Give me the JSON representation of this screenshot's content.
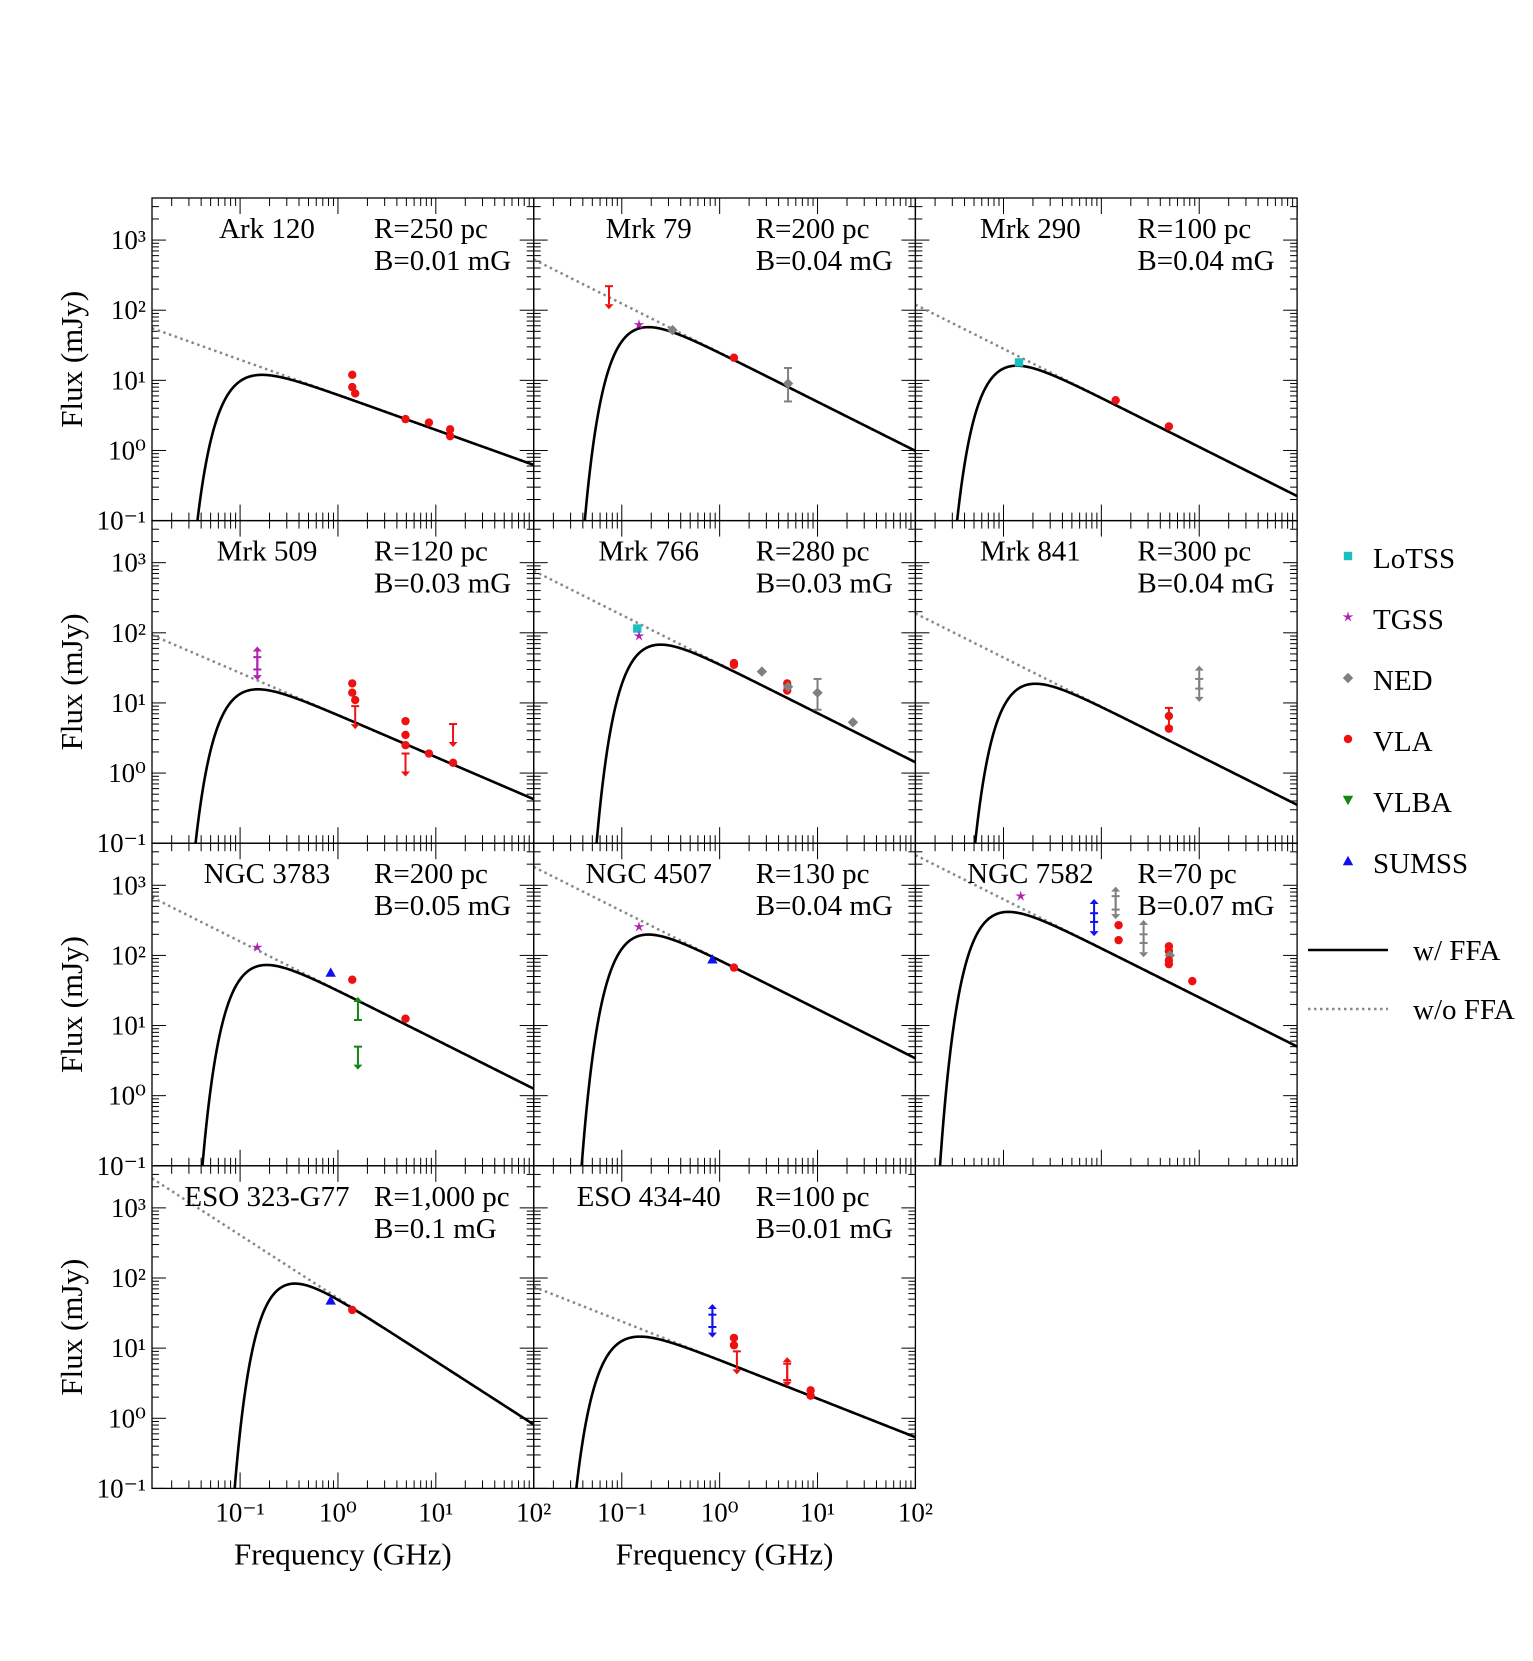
{
  "figure": {
    "xlabel": "Frequency (GHz)",
    "ylabel": "Flux (mJy)",
    "xlim_log10": [
      -1.9,
      2
    ],
    "ylim_log10": [
      -1,
      3.6
    ],
    "x_tick_labels": [
      "10⁻¹",
      "10⁰",
      "10¹",
      "10²"
    ],
    "x_tick_exponents": [
      -1,
      0,
      1,
      2
    ],
    "y_tick_labels": [
      "10⁻¹",
      "10⁰",
      "10¹",
      "10²",
      "10³"
    ],
    "y_tick_exponents": [
      -1,
      0,
      1,
      2,
      3
    ]
  },
  "legend": {
    "entries": [
      {
        "key": "lotss",
        "label": "LoTSS",
        "color": "#1ABFBF",
        "marker": "square"
      },
      {
        "key": "tgss",
        "label": "TGSS",
        "color": "#B020B0",
        "marker": "star"
      },
      {
        "key": "ned",
        "label": "NED",
        "color": "#808080",
        "marker": "diamond"
      },
      {
        "key": "vla",
        "label": "VLA",
        "color": "#EE1111",
        "marker": "circle"
      },
      {
        "key": "vlba",
        "label": "VLBA",
        "color": "#118811",
        "marker": "triangle-down"
      },
      {
        "key": "sumss",
        "label": "SUMSS",
        "color": "#1111EE",
        "marker": "triangle-up"
      }
    ],
    "lines": [
      {
        "key": "ffa",
        "label": "w/ FFA",
        "style": "solid",
        "color": "#000000"
      },
      {
        "key": "noffa",
        "label": "w/o FFA",
        "style": "dotted",
        "color": "#888888"
      }
    ]
  },
  "chart_data": [
    {
      "type": "line",
      "name": "Ark 120",
      "r_label": "R=250 pc",
      "b_label": "B=0.01 mG",
      "model": {
        "peak_ghz": 0.13,
        "peak_mjy": 11.5,
        "alpha": -0.5
      },
      "points": [
        {
          "src": "vla",
          "f": 1.4,
          "y": 12
        },
        {
          "src": "vla",
          "f": 1.4,
          "y": 8
        },
        {
          "src": "vla",
          "f": 1.5,
          "y": 6.5
        },
        {
          "src": "vla",
          "f": 4.9,
          "y": 2.8
        },
        {
          "src": "vla",
          "f": 8.5,
          "y": 2.5
        },
        {
          "src": "vla",
          "f": 14,
          "y": 2.0
        },
        {
          "src": "vla",
          "f": 14,
          "y": 1.6
        }
      ]
    },
    {
      "type": "line",
      "name": "Mrk 79",
      "r_label": "R=200 pc",
      "b_label": "B=0.04 mG",
      "model": {
        "peak_ghz": 0.15,
        "peak_mjy": 55,
        "alpha": -0.7
      },
      "points": [
        {
          "src": "vla",
          "f": 0.074,
          "y": 220,
          "limit": "upper"
        },
        {
          "src": "tgss",
          "f": 0.15,
          "y": 62
        },
        {
          "src": "ned",
          "f": 0.33,
          "y": 52
        },
        {
          "src": "vla",
          "f": 1.4,
          "y": 21
        },
        {
          "src": "ned",
          "f": 5,
          "y": 9,
          "err": [
            5,
            15
          ]
        }
      ]
    },
    {
      "type": "line",
      "name": "Mrk 290",
      "r_label": "R=100 pc",
      "b_label": "B=0.04 mG",
      "model": {
        "peak_ghz": 0.11,
        "peak_mjy": 15.5,
        "alpha": -0.7
      },
      "points": [
        {
          "src": "lotss",
          "f": 0.144,
          "y": 18
        },
        {
          "src": "vla",
          "f": 1.4,
          "y": 5.2
        },
        {
          "src": "vla",
          "f": 4.9,
          "y": 2.2
        }
      ]
    },
    {
      "type": "line",
      "name": "Mrk 509",
      "r_label": "R=120 pc",
      "b_label": "B=0.03 mG",
      "model": {
        "peak_ghz": 0.12,
        "peak_mjy": 15,
        "alpha": -0.6
      },
      "points": [
        {
          "src": "tgss",
          "f": 0.15,
          "y": 45,
          "limit": "upper"
        },
        {
          "src": "tgss",
          "f": 0.15,
          "y": 30,
          "limit": "lower"
        },
        {
          "src": "vla",
          "f": 1.4,
          "y": 19
        },
        {
          "src": "vla",
          "f": 1.4,
          "y": 14
        },
        {
          "src": "vla",
          "f": 1.5,
          "y": 11
        },
        {
          "src": "vla",
          "f": 1.5,
          "y": 9,
          "limit": "upper"
        },
        {
          "src": "vla",
          "f": 4.9,
          "y": 5.5
        },
        {
          "src": "vla",
          "f": 4.9,
          "y": 3.5
        },
        {
          "src": "vla",
          "f": 4.9,
          "y": 2.5
        },
        {
          "src": "vla",
          "f": 4.9,
          "y": 1.9,
          "limit": "upper"
        },
        {
          "src": "vla",
          "f": 8.5,
          "y": 1.9
        },
        {
          "src": "vla",
          "f": 15,
          "y": 5,
          "limit": "upper"
        },
        {
          "src": "vla",
          "f": 15,
          "y": 1.4
        }
      ]
    },
    {
      "type": "line",
      "name": "Mrk 766",
      "r_label": "R=280 pc",
      "b_label": "B=0.03 mG",
      "model": {
        "peak_ghz": 0.2,
        "peak_mjy": 65,
        "alpha": -0.7
      },
      "points": [
        {
          "src": "lotss",
          "f": 0.144,
          "y": 115
        },
        {
          "src": "tgss",
          "f": 0.15,
          "y": 90
        },
        {
          "src": "vla",
          "f": 1.4,
          "y": 37
        },
        {
          "src": "vla",
          "f": 1.4,
          "y": 35
        },
        {
          "src": "ned",
          "f": 2.7,
          "y": 28
        },
        {
          "src": "vla",
          "f": 4.9,
          "y": 19
        },
        {
          "src": "vla",
          "f": 4.9,
          "y": 15
        },
        {
          "src": "ned",
          "f": 5,
          "y": 17
        },
        {
          "src": "ned",
          "f": 10,
          "y": 14,
          "err": [
            8,
            22
          ]
        },
        {
          "src": "ned",
          "f": 23,
          "y": 5.3
        }
      ]
    },
    {
      "type": "line",
      "name": "Mrk 841",
      "r_label": "R=300 pc",
      "b_label": "B=0.04 mG",
      "model": {
        "peak_ghz": 0.17,
        "peak_mjy": 18,
        "alpha": -0.7
      },
      "points": [
        {
          "src": "vla",
          "f": 4.9,
          "y": 6.5,
          "err": [
            4.5,
            8.5
          ]
        },
        {
          "src": "vla",
          "f": 4.9,
          "y": 4.3
        },
        {
          "src": "ned",
          "f": 10,
          "y": 22,
          "limit": "upper"
        },
        {
          "src": "ned",
          "f": 10,
          "y": 16,
          "limit": "lower"
        }
      ]
    },
    {
      "type": "line",
      "name": "NGC 3783",
      "r_label": "R=200 pc",
      "b_label": "B=0.05 mG",
      "model": {
        "peak_ghz": 0.15,
        "peak_mjy": 70,
        "alpha": -0.7
      },
      "points": [
        {
          "src": "tgss",
          "f": 0.15,
          "y": 130
        },
        {
          "src": "sumss",
          "f": 0.843,
          "y": 57
        },
        {
          "src": "vla",
          "f": 1.4,
          "y": 45
        },
        {
          "src": "vlba",
          "f": 1.6,
          "y": 12,
          "limit": "lower"
        },
        {
          "src": "vlba",
          "f": 1.6,
          "y": 5,
          "limit": "upper"
        },
        {
          "src": "vla",
          "f": 4.9,
          "y": 12.5
        }
      ]
    },
    {
      "type": "line",
      "name": "NGC 4507",
      "r_label": "R=130 pc",
      "b_label": "B=0.04 mG",
      "model": {
        "peak_ghz": 0.15,
        "peak_mjy": 190,
        "alpha": -0.7
      },
      "points": [
        {
          "src": "tgss",
          "f": 0.15,
          "y": 255
        },
        {
          "src": "sumss",
          "f": 0.843,
          "y": 88
        },
        {
          "src": "vla",
          "f": 1.4,
          "y": 67
        }
      ]
    },
    {
      "type": "line",
      "name": "NGC 7582",
      "r_label": "R=70 pc",
      "b_label": "B=0.07 mG",
      "model": {
        "peak_ghz": 0.09,
        "peak_mjy": 400,
        "alpha": -0.7
      },
      "points": [
        {
          "src": "tgss",
          "f": 0.15,
          "y": 700
        },
        {
          "src": "sumss",
          "f": 0.843,
          "y": 400,
          "limit": "upper"
        },
        {
          "src": "sumss",
          "f": 0.843,
          "y": 300,
          "limit": "lower"
        },
        {
          "src": "ned",
          "f": 1.4,
          "y": 700,
          "limit": "upper"
        },
        {
          "src": "ned",
          "f": 1.4,
          "y": 450,
          "limit": "lower"
        },
        {
          "src": "vla",
          "f": 1.5,
          "y": 270
        },
        {
          "src": "vla",
          "f": 1.5,
          "y": 165
        },
        {
          "src": "ned",
          "f": 2.7,
          "y": 200,
          "limit": "upper"
        },
        {
          "src": "ned",
          "f": 2.7,
          "y": 150,
          "limit": "lower"
        },
        {
          "src": "vla",
          "f": 4.9,
          "y": 135
        },
        {
          "src": "vla",
          "f": 4.9,
          "y": 115
        },
        {
          "src": "ned",
          "f": 5,
          "y": 100
        },
        {
          "src": "vla",
          "f": 4.9,
          "y": 85
        },
        {
          "src": "vla",
          "f": 4.9,
          "y": 75
        },
        {
          "src": "vla",
          "f": 8.5,
          "y": 43
        }
      ]
    },
    {
      "type": "line",
      "name": "ESO 323-G77",
      "r_label": "R=1,000 pc",
      "b_label": "B=0.1 mG",
      "model": {
        "peak_ghz": 0.3,
        "peak_mjy": 80,
        "alpha": -0.9
      },
      "points": [
        {
          "src": "sumss",
          "f": 0.843,
          "y": 48
        },
        {
          "src": "vla",
          "f": 1.4,
          "y": 35
        }
      ]
    },
    {
      "type": "line",
      "name": "ESO 434-40",
      "r_label": "R=100 pc",
      "b_label": "B=0.01 mG",
      "model": {
        "peak_ghz": 0.12,
        "peak_mjy": 14,
        "alpha": -0.55
      },
      "points": [
        {
          "src": "sumss",
          "f": 0.843,
          "y": 30,
          "limit": "upper"
        },
        {
          "src": "sumss",
          "f": 0.843,
          "y": 20,
          "limit": "lower"
        },
        {
          "src": "vla",
          "f": 1.4,
          "y": 14
        },
        {
          "src": "vla",
          "f": 1.4,
          "y": 11
        },
        {
          "src": "vla",
          "f": 1.5,
          "y": 9,
          "limit": "upper"
        },
        {
          "src": "vla",
          "f": 4.9,
          "y": 6,
          "limit": "upper"
        },
        {
          "src": "vla",
          "f": 4.9,
          "y": 3.5,
          "limit": "lower"
        },
        {
          "src": "vla",
          "f": 8.5,
          "y": 2.5
        },
        {
          "src": "vla",
          "f": 8.5,
          "y": 2.1
        }
      ]
    }
  ]
}
